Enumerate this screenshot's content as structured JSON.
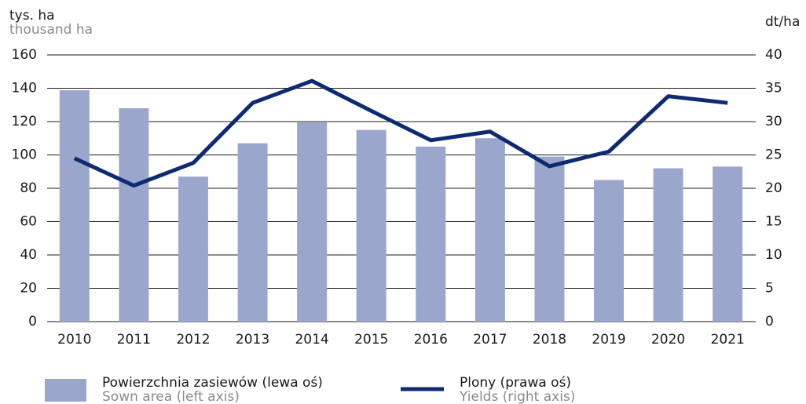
{
  "chart_data": {
    "type": "bar_line",
    "y_label": "tys. ha",
    "y_label_en": "thousand ha",
    "y2_label": "dt/ha",
    "categories": [
      "2010",
      "2011",
      "2012",
      "2013",
      "2014",
      "2015",
      "2016",
      "2017",
      "2018",
      "2019",
      "2020",
      "2021"
    ],
    "series": [
      {
        "name": "Powierzchnia zasiewów (lewa oś)",
        "name_en": "Sown area (left axis)",
        "type": "bar",
        "color": "#9ba6cc",
        "values": [
          138.8,
          128,
          87,
          107,
          119.5,
          115,
          105,
          110,
          99,
          85,
          92,
          93
        ]
      },
      {
        "name": "Plony (prawa oś)",
        "name_en": "Yields (right axis)",
        "type": "line",
        "axis": "y2",
        "color": "#0d2a72",
        "values": [
          24.5,
          20.4,
          23.8,
          32.8,
          36.1,
          31.6,
          27.2,
          28.5,
          23.3,
          25.5,
          33.8,
          32.8
        ]
      }
    ],
    "ylim": [
      0,
      160
    ],
    "yticks": [
      0,
      20,
      40,
      60,
      80,
      100,
      120,
      140,
      160
    ],
    "y2lim": [
      0,
      40
    ],
    "y2ticks": [
      0,
      5,
      10,
      15,
      20,
      25,
      30,
      35,
      40
    ],
    "grid": true
  }
}
